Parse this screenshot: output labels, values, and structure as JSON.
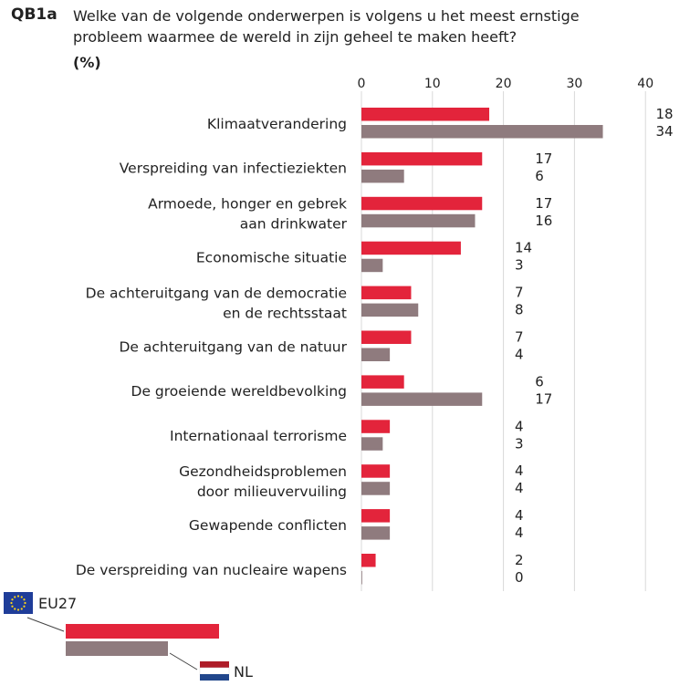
{
  "question_id": "QB1a",
  "question_text": "Welke van de volgende onderwerpen is volgens u het meest ernstige probleem waarmee de wereld in zijn geheel te maken heeft?",
  "unit": "(%)",
  "colors": {
    "eu27": "#e3243b",
    "nl": "#8f7b7e",
    "grid": "#d9d9d9"
  },
  "legend": {
    "eu27_label": "EU27",
    "nl_label": "NL"
  },
  "chart_data": {
    "type": "bar",
    "orientation": "horizontal",
    "title": "Welke van de volgende onderwerpen is volgens u het meest ernstige probleem waarmee de wereld in zijn geheel te maken heeft?",
    "xlabel": "(%)",
    "xlim": [
      0,
      40
    ],
    "ticks": [
      0,
      10,
      20,
      30,
      40
    ],
    "categories": [
      [
        "Klimaatverandering"
      ],
      [
        "Verspreiding van infectieziekten"
      ],
      [
        "Armoede, honger en gebrek",
        "aan drinkwater"
      ],
      [
        "Economische situatie"
      ],
      [
        "De achteruitgang van de democratie",
        "en de rechtsstaat"
      ],
      [
        "De achteruitgang van de natuur"
      ],
      [
        "De groeiende wereldbevolking"
      ],
      [
        "Internationaal terrorisme"
      ],
      [
        "Gezondheidsproblemen",
        "door milieuvervuiling"
      ],
      [
        "Gewapende conflicten"
      ],
      [
        "De verspreiding van nucleaire wapens"
      ]
    ],
    "series": [
      {
        "name": "EU27",
        "values": [
          18,
          17,
          17,
          14,
          7,
          7,
          6,
          4,
          4,
          4,
          2
        ]
      },
      {
        "name": "NL",
        "values": [
          34,
          6,
          16,
          3,
          8,
          4,
          17,
          3,
          4,
          4,
          0
        ]
      }
    ]
  }
}
